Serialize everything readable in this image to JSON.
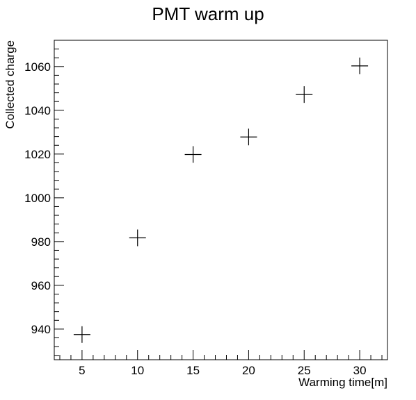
{
  "chart_data": {
    "type": "scatter",
    "title": "PMT warm up",
    "xlabel": "Warming time[m]",
    "ylabel": "Collected charge",
    "xlim": [
      2.5,
      32.5
    ],
    "ylim": [
      926,
      1072
    ],
    "x_ticks": [
      5,
      10,
      15,
      20,
      25,
      30
    ],
    "y_ticks": [
      940,
      960,
      980,
      1000,
      1020,
      1040,
      1060
    ],
    "x": [
      5,
      10,
      15,
      20,
      25,
      30
    ],
    "y": [
      937.5,
      981.7,
      1019.8,
      1027.8,
      1047.2,
      1060.3
    ],
    "marker": "cross",
    "marker_color": "#000000",
    "grid": false,
    "legend": "none"
  }
}
